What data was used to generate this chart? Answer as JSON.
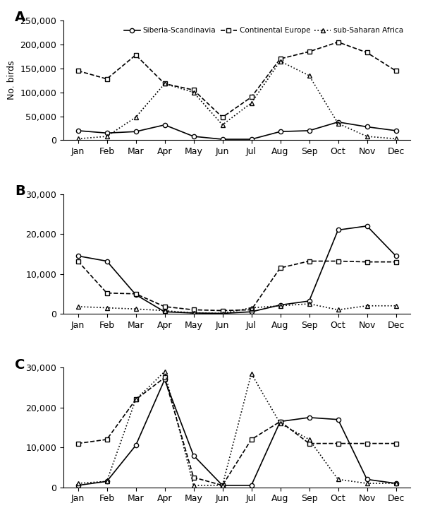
{
  "months": [
    "Jan",
    "Feb",
    "Mar",
    "Apr",
    "May",
    "Jun",
    "Jul",
    "Aug",
    "Sep",
    "Oct",
    "Nov",
    "Dec"
  ],
  "panel_A": {
    "siberia": [
      20000,
      15000,
      18000,
      32000,
      8000,
      2000,
      2000,
      18000,
      20000,
      38000,
      28000,
      20000
    ],
    "continental": [
      145000,
      128000,
      178000,
      118000,
      105000,
      48000,
      90000,
      170000,
      185000,
      205000,
      183000,
      145000
    ],
    "africa": [
      3000,
      8000,
      48000,
      118000,
      100000,
      32000,
      78000,
      165000,
      135000,
      35000,
      8000,
      3000
    ]
  },
  "panel_B": {
    "siberia": [
      14500,
      13200,
      4800,
      500,
      200,
      100,
      500,
      2200,
      3200,
      21000,
      22000,
      14500
    ],
    "continental": [
      13200,
      5200,
      5000,
      1800,
      1000,
      800,
      1000,
      11500,
      13200,
      13200,
      13000,
      13000
    ],
    "africa": [
      1800,
      1500,
      1200,
      800,
      200,
      100,
      1500,
      2000,
      2500,
      1000,
      2000,
      2000
    ]
  },
  "panel_C": {
    "siberia": [
      500,
      1500,
      10500,
      27000,
      8000,
      500,
      500,
      16500,
      17500,
      17000,
      2000,
      1000
    ],
    "continental": [
      11000,
      12000,
      22000,
      27500,
      2500,
      500,
      12000,
      16500,
      11000,
      11000,
      11000,
      11000
    ],
    "africa": [
      1000,
      1500,
      22000,
      29000,
      500,
      500,
      28500,
      16000,
      12000,
      2000,
      1000,
      1000
    ]
  },
  "ylabel_A": "No. birds",
  "ylim_A": [
    0,
    250000
  ],
  "yticks_A": [
    0,
    50000,
    100000,
    150000,
    200000,
    250000
  ],
  "ylim_BC": [
    0,
    30000
  ],
  "yticks_BC": [
    0,
    10000,
    20000,
    30000
  ],
  "labels": [
    "Siberia-Scandinavia",
    "Continental Europe",
    "sub-Saharan Africa"
  ]
}
